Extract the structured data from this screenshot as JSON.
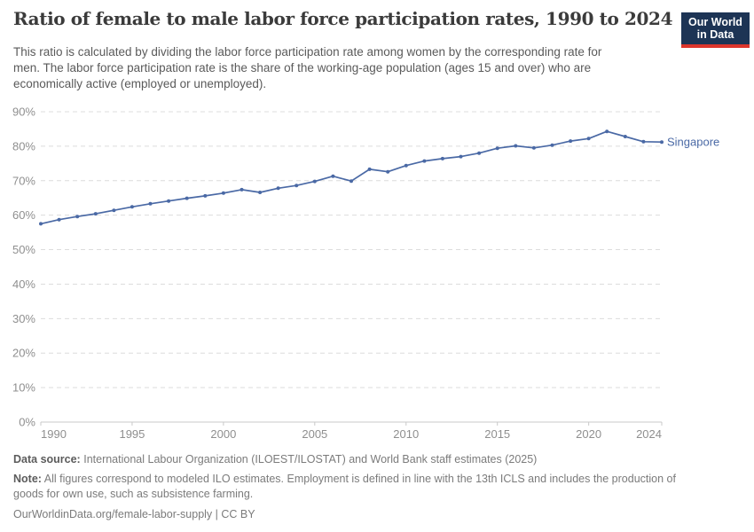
{
  "header": {
    "title": "Ratio of female to male labor force participation rates, 1990 to 2024",
    "subtitle_lines": [
      "This ratio is calculated by dividing the labor force participation rate among women by the corresponding rate for",
      "men. The labor force participation rate is the share of the working-age population (ages 15 and over) who are",
      "economically active (employed or unemployed)."
    ],
    "logo": {
      "line1": "Our World",
      "line2": "in Data",
      "bg_color": "#1d3455",
      "accent_color": "#dc352c"
    }
  },
  "chart_data": {
    "type": "line",
    "title": "Ratio of female to male labor force participation rates, 1990 to 2024",
    "x": [
      1990,
      1991,
      1992,
      1993,
      1994,
      1995,
      1996,
      1997,
      1998,
      1999,
      2000,
      2001,
      2002,
      2003,
      2004,
      2005,
      2006,
      2007,
      2008,
      2009,
      2010,
      2011,
      2012,
      2013,
      2014,
      2015,
      2016,
      2017,
      2018,
      2019,
      2020,
      2021,
      2022,
      2023,
      2024
    ],
    "series": [
      {
        "name": "Singapore",
        "color": "#4a69a5",
        "values": [
          57.5,
          58.7,
          59.6,
          60.4,
          61.4,
          62.4,
          63.3,
          64.1,
          64.9,
          65.6,
          66.4,
          67.4,
          66.6,
          67.8,
          68.6,
          69.8,
          71.3,
          69.9,
          73.3,
          72.6,
          74.4,
          75.7,
          76.4,
          77.0,
          78.0,
          79.4,
          80.1,
          79.5,
          80.3,
          81.5,
          82.2,
          84.3,
          82.8,
          81.3,
          81.2
        ]
      }
    ],
    "xlabel": "",
    "ylabel": "",
    "ylim": [
      0,
      90
    ],
    "yticks": [
      0,
      10,
      20,
      30,
      40,
      50,
      60,
      70,
      80,
      90
    ],
    "ytick_suffix": "%",
    "xticks": [
      1990,
      1995,
      2000,
      2005,
      2010,
      2015,
      2020,
      2024
    ],
    "grid": "horizontal-dashed",
    "grid_color": "#dcdcdc",
    "axis_color": "#c9c9c9",
    "tick_label_color": "#8f8f8f",
    "legend_position": "end-of-line-label"
  },
  "footer": {
    "data_source_label": "Data source:",
    "data_source": "International Labour Organization (ILOEST/ILOSTAT) and World Bank staff estimates (2025)",
    "note_label": "Note:",
    "note_lines": [
      "All figures correspond to modeled ILO estimates. Employment is defined in line with the 13th ICLS and includes the production of",
      "goods for own use, such as subsistence farming."
    ],
    "url": "OurWorldinData.org/female-labor-supply | CC BY"
  }
}
